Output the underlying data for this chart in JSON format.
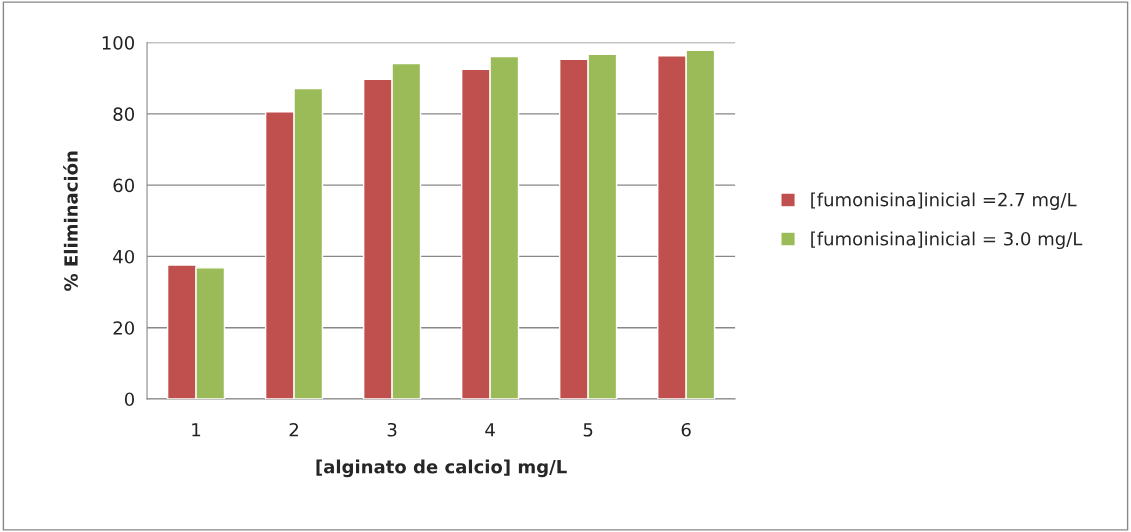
{
  "chart_data": {
    "type": "bar",
    "xlabel": "[alginato de calcio] mg/L",
    "ylabel": "% Eliminación",
    "categories": [
      "1",
      "2",
      "3",
      "4",
      "5",
      "6"
    ],
    "series": [
      {
        "name": "[fumonisina]inicial =2.7 mg/L",
        "color": "#c0504d",
        "values": [
          37.6,
          80.6,
          89.7,
          92.5,
          95.3,
          96.3
        ]
      },
      {
        "name": "[fumonisina]inicial = 3.0 mg/L",
        "color": "#9bbb59",
        "values": [
          36.8,
          87.1,
          94.1,
          96.1,
          96.7,
          97.8
        ]
      }
    ],
    "ylim": [
      0,
      100
    ],
    "yticks": [
      0,
      20,
      40,
      60,
      80,
      100
    ],
    "grid": "y",
    "legend": "right"
  }
}
